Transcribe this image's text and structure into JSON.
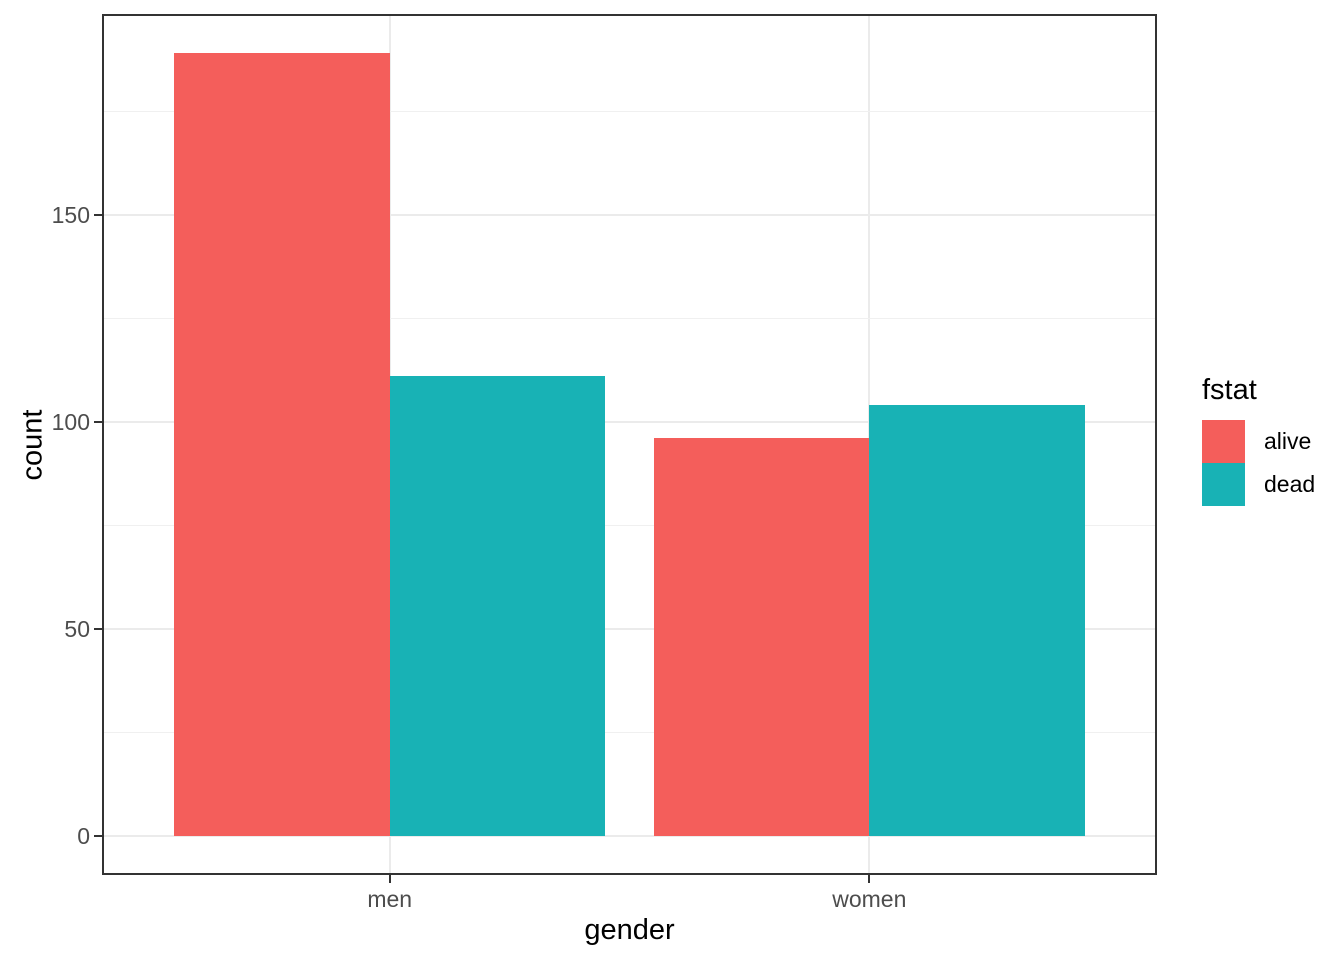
{
  "chart_data": {
    "type": "bar",
    "mode": "grouped",
    "title": "",
    "xlabel": "gender",
    "ylabel": "count",
    "categories": [
      "men",
      "women"
    ],
    "series": [
      {
        "name": "alive",
        "color": "#F45E5B",
        "values": [
          189,
          96
        ]
      },
      {
        "name": "dead",
        "color": "#18B2B5",
        "values": [
          111,
          104
        ]
      }
    ],
    "y_axis": {
      "ticks": [
        0,
        50,
        100,
        150
      ],
      "minor_ticks": [
        25,
        75,
        125,
        175
      ],
      "range": [
        0,
        189
      ]
    },
    "legend": {
      "title": "fstat",
      "position": "right",
      "items": [
        {
          "label": "alive",
          "color": "#F45E5B"
        },
        {
          "label": "dead",
          "color": "#18B2B5"
        }
      ]
    },
    "grid": true,
    "style": {
      "background": "#FFFFFF",
      "panel_border_color": "#333333",
      "major_grid_color": "#EBEBEB",
      "minor_grid_color": "#F0F0F0",
      "tick_color": "#333333",
      "tick_label_color": "#4D4D4D",
      "axis_title_color": "#000000"
    }
  }
}
